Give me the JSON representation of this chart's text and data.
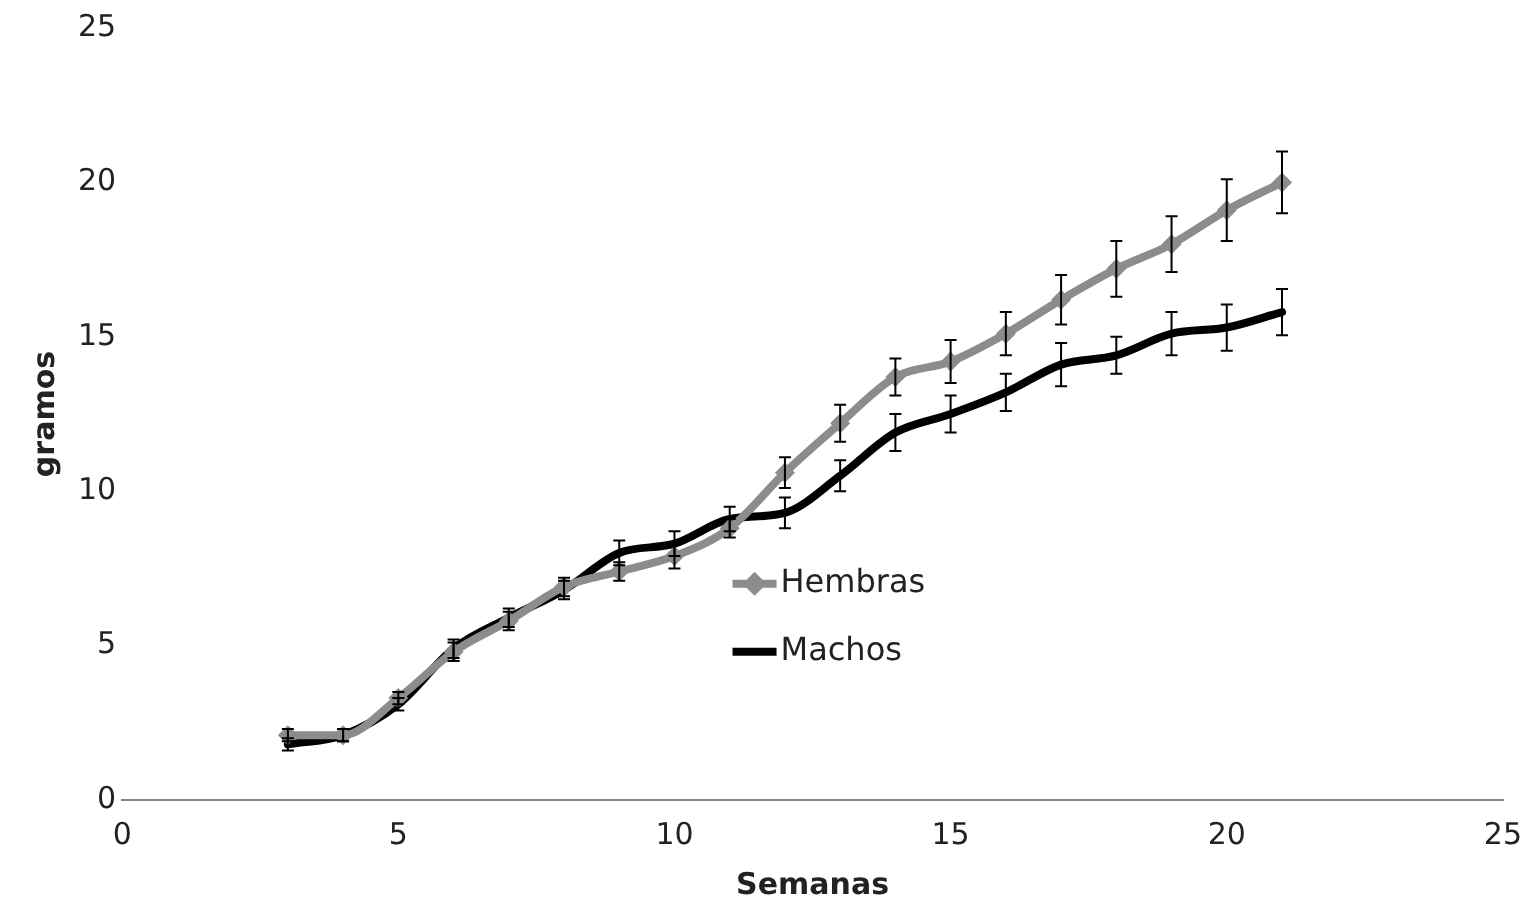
{
  "chart_data": {
    "type": "line",
    "xlabel": "Semanas",
    "ylabel": "gramos",
    "x": [
      3,
      4,
      5,
      6,
      7,
      8,
      9,
      10,
      11,
      12,
      13,
      14,
      15,
      16,
      17,
      18,
      19,
      20,
      21
    ],
    "xlim": [
      0,
      25
    ],
    "xticks": [
      0,
      5,
      10,
      15,
      20,
      25
    ],
    "ylim": [
      0,
      25
    ],
    "yticks": [
      0,
      5,
      10,
      15,
      20,
      25
    ],
    "grid": false,
    "legend": "center",
    "line_style": "solid",
    "series": [
      {
        "name": "Hembras",
        "color": "#8c8c8c",
        "marker": "diamond",
        "values": [
          2.1,
          2.1,
          3.3,
          4.8,
          5.8,
          6.9,
          7.4,
          7.9,
          8.8,
          10.6,
          12.2,
          13.7,
          14.2,
          15.1,
          16.2,
          17.2,
          18.0,
          19.1,
          20.0
        ],
        "errors": [
          0.2,
          0.2,
          0.2,
          0.3,
          0.3,
          0.3,
          0.3,
          0.4,
          0.3,
          0.5,
          0.6,
          0.6,
          0.7,
          0.7,
          0.8,
          0.9,
          0.9,
          1.0,
          1.0
        ]
      },
      {
        "name": "Machos",
        "color": "#000000",
        "marker": "none",
        "values": [
          1.8,
          2.1,
          3.1,
          4.9,
          5.9,
          6.8,
          8.0,
          8.3,
          9.1,
          9.3,
          10.5,
          11.9,
          12.5,
          13.2,
          14.1,
          14.4,
          15.1,
          15.3,
          15.8
        ],
        "errors": [
          0.2,
          0.2,
          0.2,
          0.3,
          0.3,
          0.3,
          0.4,
          0.4,
          0.4,
          0.5,
          0.5,
          0.6,
          0.6,
          0.6,
          0.7,
          0.6,
          0.7,
          0.75,
          0.75
        ]
      }
    ]
  }
}
